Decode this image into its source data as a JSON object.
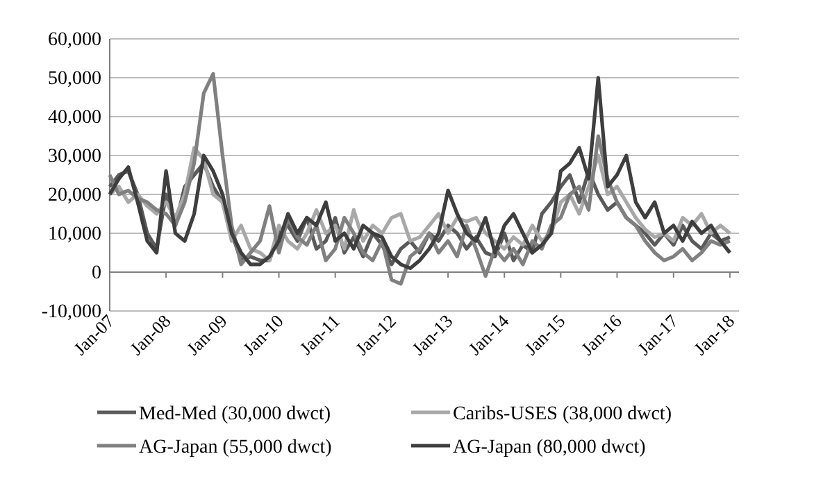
{
  "chart_data": {
    "type": "line",
    "x": [
      "2007-01",
      "2007-03",
      "2007-05",
      "2007-07",
      "2007-09",
      "2007-11",
      "2008-01",
      "2008-03",
      "2008-05",
      "2008-07",
      "2008-09",
      "2008-11",
      "2009-01",
      "2009-03",
      "2009-05",
      "2009-07",
      "2009-09",
      "2009-11",
      "2010-01",
      "2010-03",
      "2010-05",
      "2010-07",
      "2010-09",
      "2010-11",
      "2011-01",
      "2011-03",
      "2011-05",
      "2011-07",
      "2011-09",
      "2011-11",
      "2012-01",
      "2012-03",
      "2012-05",
      "2012-07",
      "2012-09",
      "2012-11",
      "2013-01",
      "2013-03",
      "2013-05",
      "2013-07",
      "2013-09",
      "2013-11",
      "2014-01",
      "2014-03",
      "2014-05",
      "2014-07",
      "2014-09",
      "2014-11",
      "2015-01",
      "2015-03",
      "2015-05",
      "2015-07",
      "2015-09",
      "2015-11",
      "2016-01",
      "2016-03",
      "2016-05",
      "2016-07",
      "2016-09",
      "2016-11",
      "2017-01",
      "2017-03",
      "2017-05",
      "2017-07",
      "2017-09",
      "2017-11",
      "2018-01"
    ],
    "series": [
      {
        "name": "Med-Med (30,000 dwct)",
        "color": "#5a5a5a",
        "values": [
          22000,
          25000,
          26000,
          20000,
          10000,
          6000,
          20000,
          12000,
          22000,
          25000,
          28000,
          22000,
          18000,
          10000,
          3000,
          4000,
          3000,
          3000,
          10000,
          12000,
          8000,
          14000,
          6000,
          8000,
          14000,
          5000,
          9000,
          4000,
          10000,
          7000,
          2000,
          6000,
          8000,
          5000,
          10000,
          8000,
          12000,
          10000,
          6000,
          9000,
          5000,
          4000,
          10000,
          3000,
          7000,
          5000,
          15000,
          18000,
          22000,
          25000,
          18000,
          26000,
          20000,
          16000,
          18000,
          14000,
          12000,
          10000,
          7000,
          10000,
          7000,
          12000,
          8000,
          6000,
          10000,
          8000,
          9000
        ]
      },
      {
        "name": "Caribs-USES (38,000 dwct)",
        "color": "#a8a8a8",
        "values": [
          20000,
          22000,
          18000,
          20000,
          17000,
          15000,
          18000,
          14000,
          20000,
          32000,
          29000,
          20000,
          18000,
          8000,
          12000,
          6000,
          5000,
          3000,
          12000,
          8000,
          6000,
          10000,
          16000,
          10000,
          12000,
          6000,
          16000,
          8000,
          12000,
          10000,
          14000,
          15000,
          8000,
          9000,
          12000,
          15000,
          10000,
          14000,
          13000,
          14000,
          10000,
          8000,
          6000,
          9000,
          7000,
          12000,
          8000,
          10000,
          18000,
          20000,
          15000,
          22000,
          30000,
          20000,
          22000,
          18000,
          14000,
          11000,
          9000,
          10000,
          8000,
          14000,
          12000,
          15000,
          10000,
          12000,
          10000
        ]
      },
      {
        "name": "AG-Japan (55,000 dwct)",
        "color": "#808080",
        "values": [
          25000,
          20000,
          21000,
          19000,
          18000,
          16000,
          15000,
          12000,
          18000,
          28000,
          46000,
          51000,
          30000,
          12000,
          2000,
          5000,
          8000,
          17000,
          5000,
          14000,
          9000,
          7000,
          12000,
          3000,
          6000,
          14000,
          10000,
          5000,
          3000,
          8000,
          -2000,
          -3000,
          4000,
          6000,
          10000,
          5000,
          8000,
          4000,
          12000,
          6000,
          -1000,
          6000,
          3000,
          6000,
          2000,
          8000,
          6000,
          12000,
          14000,
          20000,
          22000,
          16000,
          35000,
          24000,
          18000,
          14000,
          12000,
          8000,
          5000,
          3000,
          4000,
          6000,
          3000,
          5000,
          8000,
          7000,
          8000
        ]
      },
      {
        "name": "AG-Japan (80,000 dwct)",
        "color": "#3e3e3e",
        "values": [
          20000,
          24000,
          27000,
          18000,
          8000,
          5000,
          26000,
          10000,
          8000,
          15000,
          30000,
          26000,
          20000,
          10000,
          5000,
          2000,
          2000,
          4000,
          8000,
          15000,
          10000,
          14000,
          12000,
          18000,
          8000,
          10000,
          6000,
          12000,
          10000,
          9000,
          4000,
          2000,
          1000,
          3000,
          6000,
          10000,
          21000,
          15000,
          10000,
          8000,
          14000,
          5000,
          12000,
          15000,
          10000,
          5000,
          7000,
          10000,
          26000,
          28000,
          32000,
          24000,
          50000,
          22000,
          25000,
          30000,
          18000,
          14000,
          18000,
          10000,
          12000,
          8000,
          13000,
          10000,
          12000,
          8000,
          5000
        ]
      }
    ],
    "xlim": [
      "2007-01",
      "2018-03"
    ],
    "xticks": [
      {
        "value": "2007-01",
        "label": "Jan-07"
      },
      {
        "value": "2008-01",
        "label": "Jan-08"
      },
      {
        "value": "2009-01",
        "label": "Jan-09"
      },
      {
        "value": "2010-01",
        "label": "Jan-10"
      },
      {
        "value": "2011-01",
        "label": "Jan-11"
      },
      {
        "value": "2012-01",
        "label": "Jan-12"
      },
      {
        "value": "2013-01",
        "label": "Jan-13"
      },
      {
        "value": "2014-01",
        "label": "Jan-14"
      },
      {
        "value": "2015-01",
        "label": "Jan-15"
      },
      {
        "value": "2016-01",
        "label": "Jan-16"
      },
      {
        "value": "2017-01",
        "label": "Jan-17"
      },
      {
        "value": "2018-01",
        "label": "Jan-18"
      }
    ],
    "ylim": [
      -10000,
      60000
    ],
    "yticks": [
      {
        "value": -10000,
        "label": "-10,000"
      },
      {
        "value": 0,
        "label": "0"
      },
      {
        "value": 10000,
        "label": "10,000"
      },
      {
        "value": 20000,
        "label": "20,000"
      },
      {
        "value": 30000,
        "label": "30,000"
      },
      {
        "value": 40000,
        "label": "40,000"
      },
      {
        "value": 50000,
        "label": "50,000"
      },
      {
        "value": 60000,
        "label": "60,000"
      }
    ],
    "grid": "y",
    "legend": "bottom",
    "marker": "none",
    "line_style": "solid"
  }
}
